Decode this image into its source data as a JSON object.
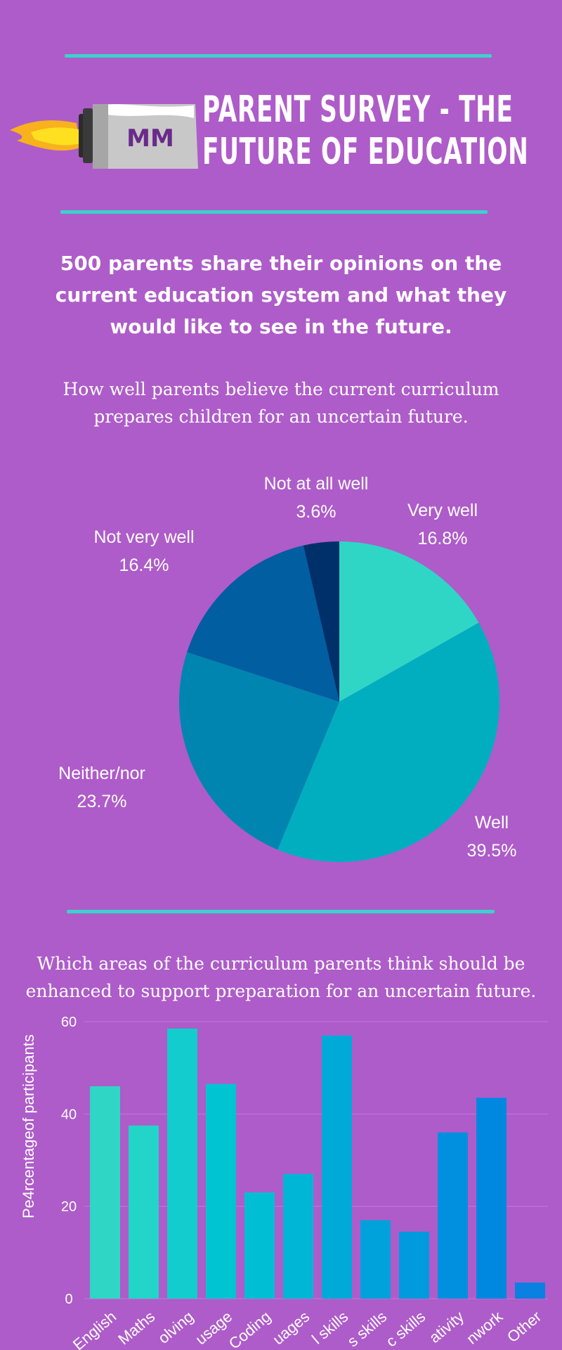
{
  "header": {
    "title_line1": "PARENT SURVEY - THE",
    "title_line2": "FUTURE OF EDUCATION",
    "logo_text": "MM",
    "logo_icon": "rocket-icon"
  },
  "intro": "500 parents  share their opinions on the current education system and what they would like to see in the future.",
  "question1": "How well parents believe the current curriculum prepares children for an uncertain future.",
  "question2": "Which areas of the curriculum parents think should be enhanced to support preparation for an uncertain future.",
  "colors": {
    "background": "#ae5cc9",
    "rule": "#3dd1cd"
  },
  "chart_data": [
    {
      "type": "pie",
      "title": "",
      "slices": [
        {
          "label": "Very well",
          "value_text": "16.8%",
          "value": 16.8,
          "color": "#2fd6c6"
        },
        {
          "label": "Well",
          "value_text": "39.5%",
          "value": 39.5,
          "color": "#00aec0"
        },
        {
          "label": "Neither/nor",
          "value_text": "23.7%",
          "value": 23.7,
          "color": "#0085b0"
        },
        {
          "label": "Not very well",
          "value_text": "16.4%",
          "value": 16.4,
          "color": "#005ea1"
        },
        {
          "label": "Not at all well",
          "value_text": "3.6%",
          "value": 3.6,
          "color": "#00306a"
        }
      ]
    },
    {
      "type": "bar",
      "categories": [
        "English",
        "Maths",
        "olving",
        "usage",
        "Coding",
        "uages",
        "l skills",
        "s skills",
        "c skills",
        "ativity",
        "nwork",
        "Other"
      ],
      "values": [
        46,
        37.5,
        58.5,
        46.5,
        23,
        27,
        57,
        17,
        14.5,
        36,
        43.5,
        3.5
      ],
      "colors": [
        "#2fd6c6",
        "#23d4c9",
        "#12cccd",
        "#00c4d2",
        "#00bed4",
        "#00b6d6",
        "#00aad8",
        "#00a2dc",
        "#009ade",
        "#0090df",
        "#0088e0",
        "#0a80e0"
      ],
      "ylabel": "Pe4rcentageof participants",
      "xlabel": "",
      "ylim": [
        0,
        60
      ],
      "yticks": [
        0,
        20,
        40,
        60
      ],
      "grid": true
    }
  ]
}
